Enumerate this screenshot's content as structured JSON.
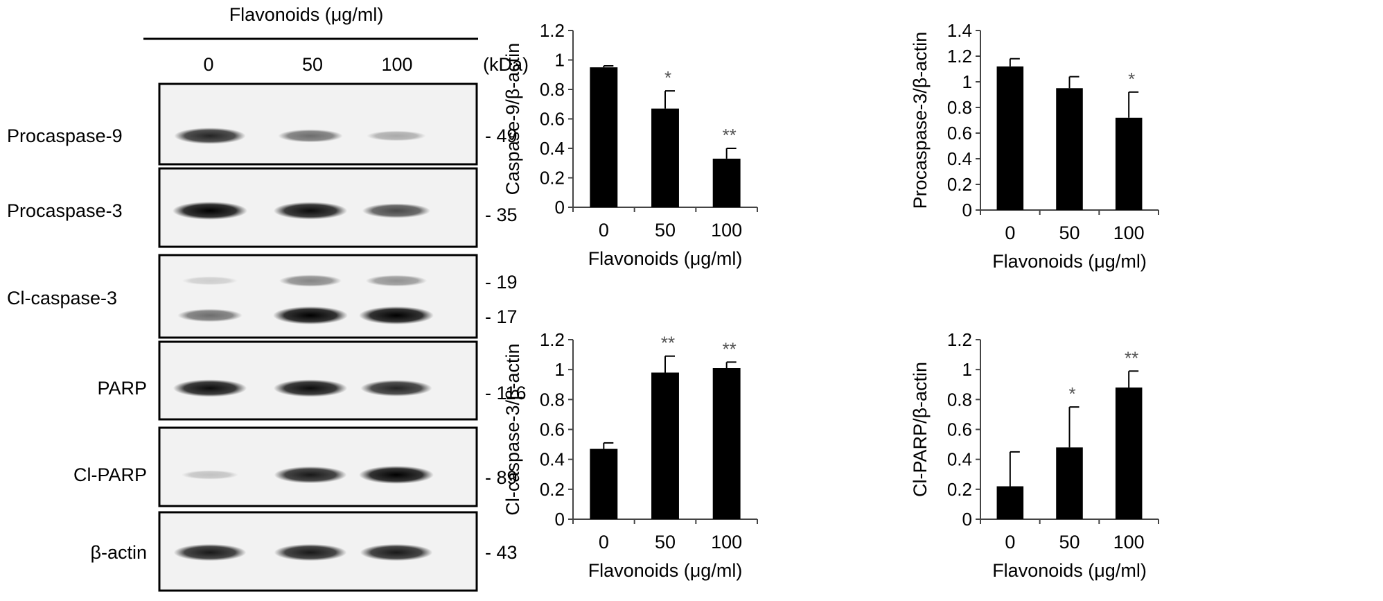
{
  "blot": {
    "header": "Flavonoids (μg/ml)",
    "doses": [
      "0",
      "50",
      "100"
    ],
    "kda_label": "(kDa)",
    "panels": [
      {
        "label": "Procaspase-9",
        "kda": [
          "- 49"
        ],
        "bands": [
          [
            0.85,
            0.55,
            0.3
          ]
        ]
      },
      {
        "label": "Procaspase-3",
        "kda": [
          "- 35"
        ],
        "bands": [
          [
            1.0,
            0.95,
            0.7
          ]
        ]
      },
      {
        "label": "Cl-caspase-3",
        "kda": [
          "- 19",
          "- 17"
        ],
        "bands": [
          [
            0.15,
            0.45,
            0.4
          ],
          [
            0.55,
            1.0,
            1.0
          ]
        ]
      },
      {
        "label": "PARP",
        "kda": [
          "- 116"
        ],
        "bands": [
          [
            0.95,
            0.95,
            0.85
          ]
        ]
      },
      {
        "label": "Cl-PARP",
        "kda": [
          "- 89"
        ],
        "bands": [
          [
            0.2,
            0.9,
            1.0
          ]
        ]
      },
      {
        "label": "β-actin",
        "kda": [
          "- 43"
        ],
        "bands": [
          [
            0.9,
            0.9,
            0.9
          ]
        ]
      }
    ]
  },
  "chart_data": [
    {
      "type": "bar",
      "categories": [
        "0",
        "50",
        "100"
      ],
      "values": [
        0.95,
        0.67,
        0.33
      ],
      "errors": [
        0.01,
        0.12,
        0.07
      ],
      "annotations": [
        "",
        "*",
        "**"
      ],
      "xlabel": "Flavonoids (μg/ml)",
      "ylabel": "Caspase-9/β-actin",
      "ylim": [
        0,
        1.2
      ],
      "yticks": [
        "0",
        "0.2",
        "0.4",
        "0.6",
        "0.8",
        "1",
        "1.2"
      ]
    },
    {
      "type": "bar",
      "categories": [
        "0",
        "50",
        "100"
      ],
      "values": [
        1.12,
        0.95,
        0.72
      ],
      "errors": [
        0.06,
        0.09,
        0.2
      ],
      "annotations": [
        "",
        "",
        "*"
      ],
      "xlabel": "Flavonoids (μg/ml)",
      "ylabel": "Procaspase-3/β-actin",
      "ylim": [
        0,
        1.4
      ],
      "yticks": [
        "0",
        "0.2",
        "0.4",
        "0.6",
        "0.8",
        "1",
        "1.2",
        "1.4"
      ]
    },
    {
      "type": "bar",
      "categories": [
        "0",
        "50",
        "100"
      ],
      "values": [
        0.47,
        0.98,
        1.01
      ],
      "errors": [
        0.04,
        0.11,
        0.04
      ],
      "annotations": [
        "",
        "**",
        "**"
      ],
      "xlabel": "Flavonoids (μg/ml)",
      "ylabel": "Cl-caspase-3/β-actin",
      "ylim": [
        0,
        1.2
      ],
      "yticks": [
        "0",
        "0.2",
        "0.4",
        "0.6",
        "0.8",
        "1",
        "1.2"
      ]
    },
    {
      "type": "bar",
      "categories": [
        "0",
        "50",
        "100"
      ],
      "values": [
        0.22,
        0.48,
        0.88
      ],
      "errors": [
        0.23,
        0.27,
        0.11
      ],
      "annotations": [
        "",
        "*",
        "**"
      ],
      "xlabel": "Flavonoids (μg/ml)",
      "ylabel": "Cl-PARP/β-actin",
      "ylim": [
        0,
        1.2
      ],
      "yticks": [
        "0",
        "0.2",
        "0.4",
        "0.6",
        "0.8",
        "1",
        "1.2"
      ]
    }
  ]
}
